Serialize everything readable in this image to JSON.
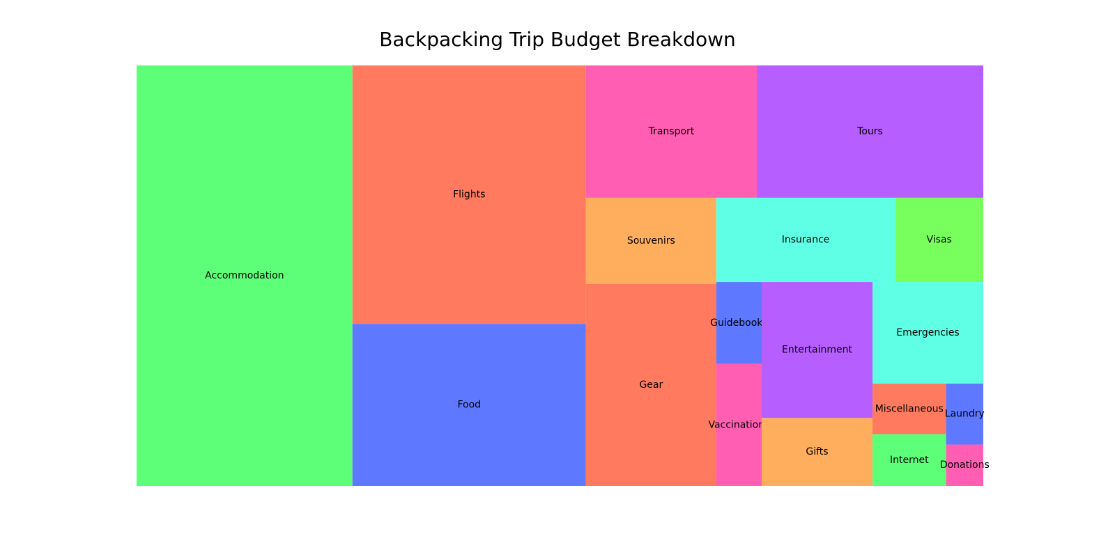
{
  "chart_data": {
    "type": "treemap",
    "title": "Backpacking Trip Budget Breakdown",
    "value_note": "values estimated from relative tile areas (arbitrary units)",
    "items": [
      {
        "label": "Accommodation",
        "value": 1000,
        "color": "#5EFF78"
      },
      {
        "label": "Flights",
        "value": 665,
        "color": "#FF7A5E"
      },
      {
        "label": "Food",
        "value": 417,
        "color": "#5E78FF"
      },
      {
        "label": "Transport",
        "value": 249,
        "color": "#FF5EB2"
      },
      {
        "label": "Tours",
        "value": 330,
        "color": "#B65EFF"
      },
      {
        "label": "Souvenirs",
        "value": 124,
        "color": "#FFAE5E"
      },
      {
        "label": "Gear",
        "value": 290,
        "color": "#FF7A5E"
      },
      {
        "label": "Insurance",
        "value": 166,
        "color": "#5EFFE4"
      },
      {
        "label": "Visas",
        "value": 82,
        "color": "#78FF5E"
      },
      {
        "label": "Guidebooks",
        "value": 41,
        "color": "#5E78FF"
      },
      {
        "label": "Vaccinations",
        "value": 61,
        "color": "#FF5EB2"
      },
      {
        "label": "Entertainment",
        "value": 166,
        "color": "#B65EFF"
      },
      {
        "label": "Gifts",
        "value": 83,
        "color": "#FFAE5E"
      },
      {
        "label": "Emergencies",
        "value": 124,
        "color": "#5EFFE4"
      },
      {
        "label": "Miscellaneous",
        "value": 41,
        "color": "#FF7A5E"
      },
      {
        "label": "Internet",
        "value": 42,
        "color": "#5EFF78"
      },
      {
        "label": "Laundry",
        "value": 25,
        "color": "#5E78FF"
      },
      {
        "label": "Donations",
        "value": 17,
        "color": "#FF5EB2"
      }
    ]
  }
}
